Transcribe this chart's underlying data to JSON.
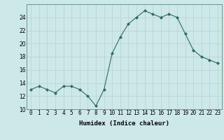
{
  "x": [
    0,
    1,
    2,
    3,
    4,
    5,
    6,
    7,
    8,
    9,
    10,
    11,
    12,
    13,
    14,
    15,
    16,
    17,
    18,
    19,
    20,
    21,
    22,
    23
  ],
  "y": [
    13,
    13.5,
    13,
    12.5,
    13.5,
    13.5,
    13,
    12,
    10.5,
    13,
    18.5,
    21,
    23,
    24,
    25,
    24.5,
    24,
    24.5,
    24,
    21.5,
    19,
    18,
    17.5,
    17
  ],
  "line_color": "#2e6b5e",
  "marker": "D",
  "marker_size": 2.0,
  "bg_color": "#cde8e8",
  "grid_color": "#b8d0d0",
  "xlabel": "Humidex (Indice chaleur)",
  "xlim": [
    -0.5,
    23.5
  ],
  "ylim": [
    10,
    26
  ],
  "yticks": [
    10,
    12,
    14,
    16,
    18,
    20,
    22,
    24
  ],
  "xtick_labels": [
    "0",
    "1",
    "2",
    "3",
    "4",
    "5",
    "6",
    "7",
    "8",
    "9",
    "10",
    "11",
    "12",
    "13",
    "14",
    "15",
    "16",
    "17",
    "18",
    "19",
    "20",
    "21",
    "22",
    "23"
  ],
  "tick_fontsize": 5.5,
  "xlabel_fontsize": 6.5
}
